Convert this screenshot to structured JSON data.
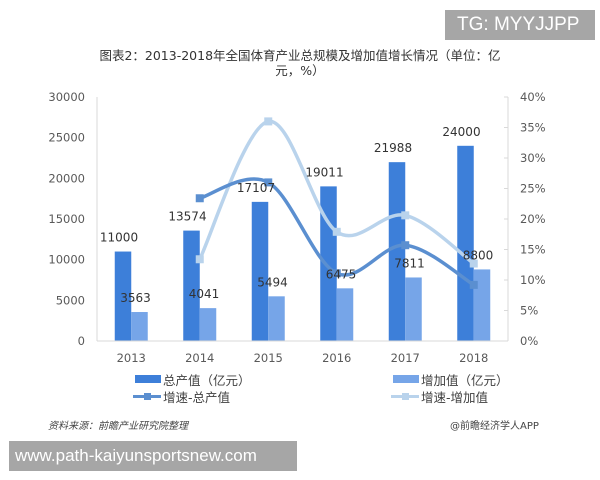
{
  "badge": {
    "text": "TG: MYYJJPP"
  },
  "title": {
    "line1": "图表2：2013-2018年全国体育产业总规模及增加值增长情况（单位：亿",
    "line2": "元，%）"
  },
  "colors": {
    "total_bar": "#3d7fd9",
    "added_bar": "#76a5e8",
    "growth_total_line": "#5b8fd0",
    "growth_added_line": "#b9d3ec",
    "axis": "#d9d9d9",
    "tick_text": "#595959",
    "label_text": "#333333"
  },
  "legend": {
    "items": [
      {
        "label": "总产值（亿元）",
        "type": "bar",
        "color": "#3d7fd9"
      },
      {
        "label": "增加值（亿元）",
        "type": "bar",
        "color": "#76a5e8"
      },
      {
        "label": "增速-总产值",
        "type": "line",
        "color": "#5b8fd0"
      },
      {
        "label": "增速-增加值",
        "type": "line",
        "color": "#b9d3ec"
      }
    ]
  },
  "footer": {
    "source": "资料来源：前瞻产业研究院整理",
    "credit": "@前瞻经济学人APP"
  },
  "url_banner": {
    "text": "www.path-kaiyunsportsnew.com"
  },
  "chart_data": {
    "type": "bar",
    "title": "图表2：2013-2018年全国体育产业总规模及增加值增长情况（单位：亿元，%）",
    "categories": [
      "2013",
      "2014",
      "2015",
      "2016",
      "2017",
      "2018"
    ],
    "series": [
      {
        "name": "总产值（亿元）",
        "type": "bar",
        "axis": "left",
        "values": [
          11000,
          13574,
          17107,
          19011,
          21988,
          24000
        ]
      },
      {
        "name": "增加值（亿元）",
        "type": "bar",
        "axis": "left",
        "values": [
          3563,
          4041,
          5494,
          6475,
          7811,
          8800
        ]
      },
      {
        "name": "增速-总产值",
        "type": "line",
        "axis": "right",
        "smooth": true,
        "values": [
          null,
          23.4,
          26.0,
          11.1,
          15.7,
          9.2
        ]
      },
      {
        "name": "增速-增加值",
        "type": "line",
        "axis": "right",
        "smooth": true,
        "values": [
          null,
          13.4,
          36.0,
          17.9,
          20.6,
          12.7
        ]
      }
    ],
    "left_axis": {
      "min": 0,
      "max": 30000,
      "ticks": [
        0,
        5000,
        10000,
        15000,
        20000,
        25000,
        30000
      ]
    },
    "right_axis": {
      "min": 0,
      "max": 40,
      "ticks": [
        "0%",
        "5%",
        "10%",
        "15%",
        "20%",
        "25%",
        "30%",
        "35%",
        "40%"
      ]
    },
    "xlabel": "",
    "ylabel": "",
    "grid": false,
    "legend_position": "bottom"
  }
}
